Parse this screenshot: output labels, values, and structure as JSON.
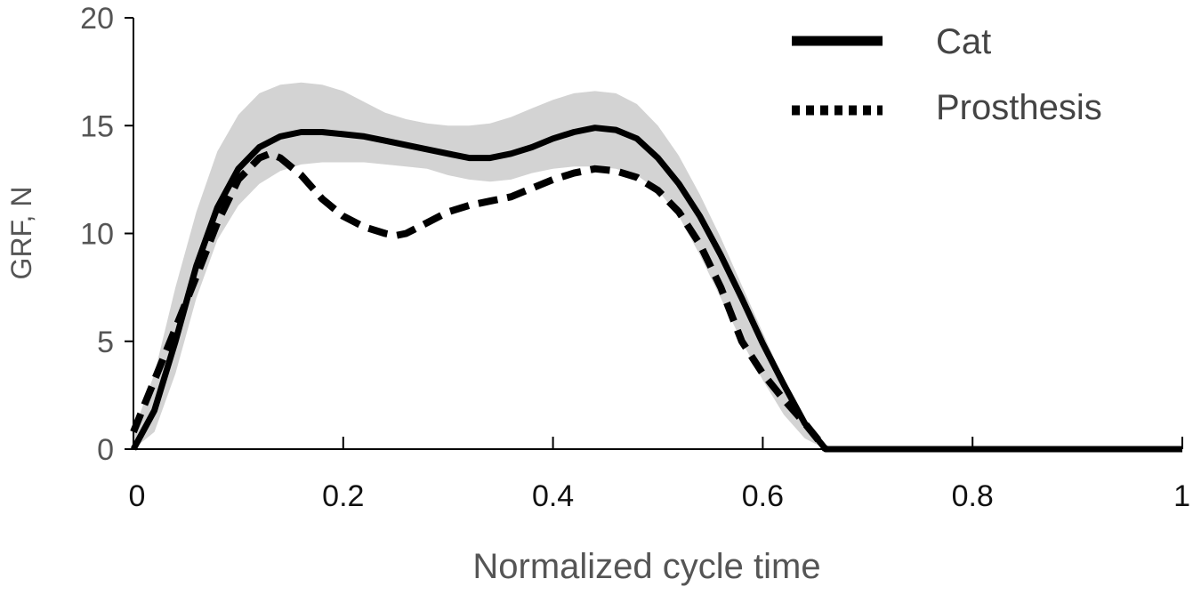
{
  "chart_data": {
    "type": "line",
    "title": "",
    "xlabel": "Normalized cycle time",
    "ylabel": "GRF, N",
    "xlim": [
      0,
      1
    ],
    "ylim": [
      0,
      20
    ],
    "x_ticks": [
      0,
      0.2,
      0.4,
      0.6,
      0.8,
      1
    ],
    "x_tick_labels": [
      "0",
      "0.2",
      "0.4",
      "0.6",
      "0.8",
      "1"
    ],
    "y_ticks": [
      0,
      5,
      10,
      15,
      20
    ],
    "y_tick_labels": [
      "0",
      "5",
      "10",
      "15",
      "20"
    ],
    "legend": {
      "placement": "top-right",
      "entries": [
        "Cat",
        "Prosthesis"
      ]
    },
    "band": {
      "name": "Cat variability",
      "color": "#d3d3d3",
      "x": [
        0,
        0.02,
        0.04,
        0.06,
        0.08,
        0.1,
        0.12,
        0.14,
        0.16,
        0.18,
        0.2,
        0.22,
        0.24,
        0.26,
        0.28,
        0.3,
        0.32,
        0.34,
        0.36,
        0.38,
        0.4,
        0.42,
        0.44,
        0.46,
        0.48,
        0.5,
        0.52,
        0.54,
        0.56,
        0.58,
        0.6,
        0.62,
        0.64,
        0.66
      ],
      "upper": [
        0.8,
        3.5,
        7.5,
        11.0,
        13.8,
        15.5,
        16.5,
        16.9,
        17.0,
        16.9,
        16.6,
        16.1,
        15.6,
        15.3,
        15.1,
        15.0,
        15.0,
        15.1,
        15.4,
        15.8,
        16.2,
        16.5,
        16.6,
        16.5,
        16.0,
        15.0,
        13.6,
        11.8,
        9.8,
        7.6,
        5.4,
        3.2,
        1.4,
        0.0
      ],
      "lower": [
        0.0,
        0.8,
        3.5,
        7.0,
        9.7,
        11.3,
        12.3,
        12.9,
        13.2,
        13.3,
        13.3,
        13.3,
        13.2,
        13.1,
        13.0,
        12.7,
        12.5,
        12.4,
        12.5,
        12.8,
        13.0,
        13.1,
        13.1,
        13.0,
        12.7,
        12.0,
        10.8,
        9.0,
        7.0,
        5.0,
        3.2,
        1.6,
        0.5,
        0.0
      ]
    },
    "series": [
      {
        "name": "Cat",
        "style": "solid",
        "color": "#000000",
        "x": [
          0,
          0.02,
          0.04,
          0.06,
          0.08,
          0.1,
          0.12,
          0.14,
          0.16,
          0.18,
          0.2,
          0.22,
          0.24,
          0.26,
          0.28,
          0.3,
          0.32,
          0.34,
          0.36,
          0.38,
          0.4,
          0.42,
          0.44,
          0.46,
          0.48,
          0.5,
          0.52,
          0.54,
          0.56,
          0.58,
          0.6,
          0.62,
          0.64,
          0.66,
          0.7,
          0.8,
          0.9,
          1.0
        ],
        "values": [
          0,
          1.8,
          5.0,
          8.5,
          11.2,
          13.0,
          14.0,
          14.5,
          14.7,
          14.7,
          14.6,
          14.5,
          14.3,
          14.1,
          13.9,
          13.7,
          13.5,
          13.5,
          13.7,
          14.0,
          14.4,
          14.7,
          14.9,
          14.8,
          14.4,
          13.5,
          12.3,
          10.8,
          9.0,
          7.0,
          4.9,
          3.0,
          1.2,
          0,
          0,
          0,
          0,
          0
        ]
      },
      {
        "name": "Prosthesis",
        "style": "dashed",
        "color": "#000000",
        "x": [
          0,
          0.02,
          0.04,
          0.06,
          0.08,
          0.1,
          0.12,
          0.13,
          0.14,
          0.16,
          0.18,
          0.2,
          0.22,
          0.24,
          0.25,
          0.26,
          0.28,
          0.3,
          0.32,
          0.34,
          0.36,
          0.38,
          0.4,
          0.42,
          0.44,
          0.46,
          0.48,
          0.5,
          0.52,
          0.54,
          0.56,
          0.58,
          0.6,
          0.62,
          0.64,
          0.66
        ],
        "values": [
          0.8,
          3.2,
          5.6,
          8.0,
          10.5,
          12.5,
          13.5,
          13.7,
          13.5,
          12.7,
          11.6,
          10.8,
          10.3,
          10.0,
          9.9,
          10.0,
          10.5,
          11.0,
          11.3,
          11.5,
          11.7,
          12.1,
          12.5,
          12.8,
          13.0,
          12.9,
          12.6,
          12.0,
          11.0,
          9.5,
          7.5,
          5.0,
          3.5,
          2.3,
          1.2,
          0
        ]
      }
    ]
  }
}
